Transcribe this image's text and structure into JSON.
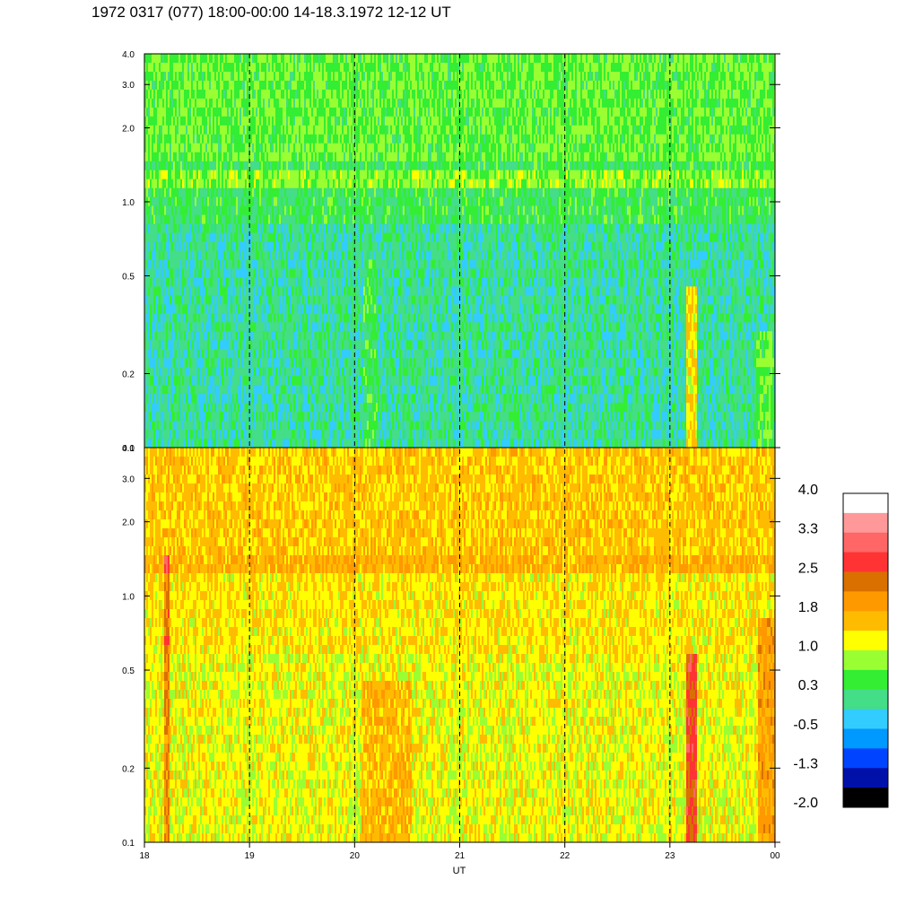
{
  "title": "1972 0317 (077) 18:00-00:00 14-18.3.1972  12-12 UT",
  "chart_data": {
    "type": "heatmap",
    "xlabel": "UT",
    "x_ticks": [
      "18",
      "19",
      "20",
      "21",
      "22",
      "23",
      "00"
    ],
    "xlim": [
      18,
      24
    ],
    "y_scale": "log",
    "ylim": [
      0.1,
      4.0
    ],
    "y_ticks": [
      "4.0",
      "3.0",
      "2.0",
      "1.0",
      "0.5",
      "0.2",
      "0.1"
    ],
    "grid": "dashed vertical lines at each hour",
    "panels": [
      {
        "name": "top",
        "dominant_levels": [
          "-0.5",
          "0.3",
          "1.0"
        ],
        "band_center": 1.2
      },
      {
        "name": "bottom",
        "dominant_levels": [
          "1.0",
          "1.8",
          "2.5"
        ],
        "band_center": 1.35
      }
    ],
    "colorbar": {
      "labels": [
        "4.0",
        "3.3",
        "2.5",
        "1.8",
        "1.0",
        "0.3",
        "-0.5",
        "-1.3",
        "-2.0"
      ],
      "colors": [
        "#ffffff",
        "#ff9999",
        "#ff6666",
        "#ff3333",
        "#d97000",
        "#ff9900",
        "#ffbb00",
        "#ffff00",
        "#99ff33",
        "#33ee33",
        "#44dd88",
        "#33ccff",
        "#0099ff",
        "#0044ff",
        "#0011aa",
        "#000000"
      ]
    }
  }
}
